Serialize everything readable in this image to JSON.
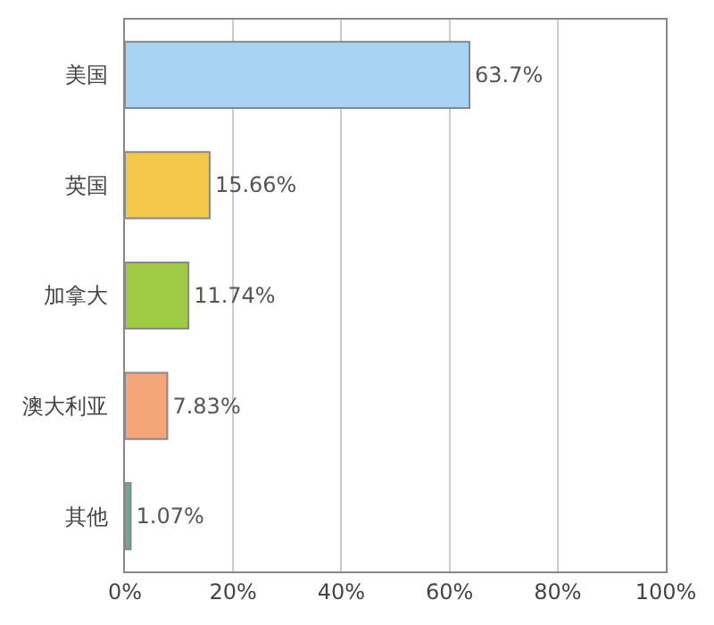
{
  "chart_data": {
    "type": "bar",
    "orientation": "horizontal",
    "categories": [
      "美国",
      "英国",
      "加拿大",
      "澳大利亚",
      "其他"
    ],
    "values": [
      63.7,
      15.66,
      11.74,
      7.83,
      1.07
    ],
    "colors": [
      "#a9d3f3",
      "#f3c84a",
      "#9fcb45",
      "#f5a57a",
      "#6fa89a"
    ],
    "value_labels": [
      "63.7%",
      "15.66%",
      "11.74%",
      "7.83%",
      "1.07%"
    ],
    "xlim": [
      0,
      100
    ],
    "xticks": [
      {
        "value": 0,
        "label": "0%"
      },
      {
        "value": 20,
        "label": "20%"
      },
      {
        "value": 40,
        "label": "40%"
      },
      {
        "value": 60,
        "label": "60%"
      },
      {
        "value": 80,
        "label": "80%"
      },
      {
        "value": 100,
        "label": "100%"
      }
    ],
    "grid": "x"
  }
}
